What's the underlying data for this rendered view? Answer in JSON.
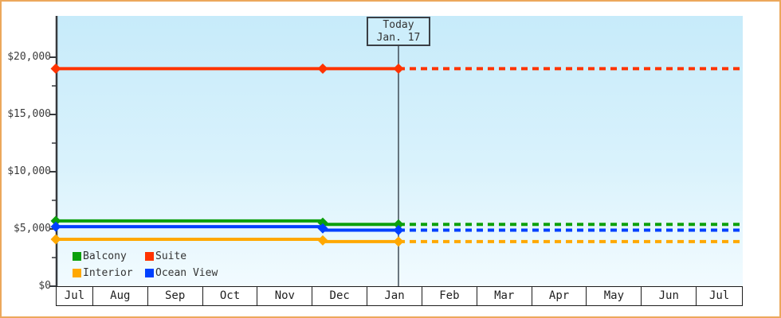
{
  "title": "Cruise cabin price history chart",
  "colors": {
    "frame_border": "#eca85c",
    "plot_gradient_top": "#c7ebfa",
    "plot_gradient_bottom": "#f2fbff",
    "axis": "#36393d",
    "text": "#3b3b3b",
    "today_line": "#3e4a55",
    "month_border": "#1c1c1c"
  },
  "chart_data": {
    "type": "line",
    "title": "",
    "xlabel": "",
    "ylabel": "",
    "x_categories": [
      "Jul",
      "Aug",
      "Sep",
      "Oct",
      "Nov",
      "Dec",
      "Jan",
      "Feb",
      "Mar",
      "Apr",
      "May",
      "Jun",
      "Jul"
    ],
    "y_ticks": [
      {
        "value": 0,
        "label": "$0"
      },
      {
        "value": 5000,
        "label": "$5,000"
      },
      {
        "value": 10000,
        "label": "$10,000"
      },
      {
        "value": 15000,
        "label": "$15,000"
      },
      {
        "value": 20000,
        "label": "$20,000"
      }
    ],
    "y_minor_tick_values": [
      2500,
      7500,
      12500,
      17500
    ],
    "ylim": [
      0,
      23600
    ],
    "grid": false,
    "legend_position": "bottom-left",
    "today": {
      "label": "Today",
      "date": "Jan. 17"
    },
    "marker_dates": [
      "Jul (start)",
      "Dec",
      "Jan 17 (today)"
    ],
    "line_style": "solid before today, dashed projection after today",
    "series": [
      {
        "name": "Balcony",
        "color": "#0ca00c",
        "value_jul_to_dec": 5700,
        "value_dec_to_today": 5400,
        "projected_after_today": 5400
      },
      {
        "name": "Suite",
        "color": "#ff3300",
        "value_jul_to_dec": 19000,
        "value_dec_to_today": 19000,
        "projected_after_today": 19000
      },
      {
        "name": "Interior",
        "color": "#ffa800",
        "value_jul_to_dec": 4100,
        "value_dec_to_today": 3900,
        "projected_after_today": 3900
      },
      {
        "name": "Ocean View",
        "color": "#0040ff",
        "value_jul_to_dec": 5200,
        "value_dec_to_today": 4900,
        "projected_after_today": 4900
      }
    ]
  }
}
